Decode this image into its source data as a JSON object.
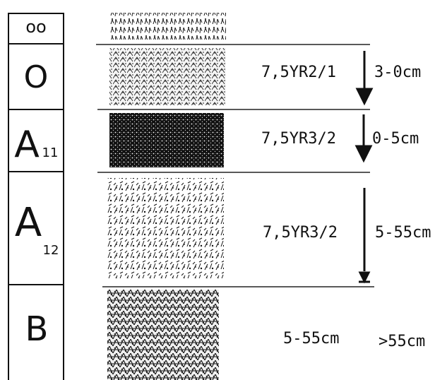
{
  "horizons": [
    {
      "code": "OO",
      "depth": "",
      "color": ""
    },
    {
      "code": "O",
      "sub": "",
      "munsell": "7,5YR2/1",
      "depth": "3-0cm"
    },
    {
      "code": "A",
      "sub": "11",
      "munsell": "7,5YR3/2",
      "depth": "0-5cm"
    },
    {
      "code": "A",
      "sub": "12",
      "munsell": "7,5YR3/2",
      "depth": "5-55cm"
    },
    {
      "code": "B",
      "sub": "",
      "munsell": "5-55cm",
      "depth": ">55cm"
    }
  ],
  "symbols": {
    "top": "oo",
    "o": "O",
    "a11_main": "A",
    "a11_sub": "11",
    "a12_main": "A",
    "a12_sub": "12",
    "b": "B"
  },
  "labels": {
    "o_color": "7,5YR2/1",
    "o_depth": "3-0cm",
    "a11_color": "7,5YR3/2",
    "a11_depth": "0-5cm",
    "a12_color": "7,5YR3/2",
    "a12_depth": "5-55cm",
    "b_left": "5-55cm",
    "b_right": ">55cm"
  },
  "colors": {
    "ink": "#111111",
    "line": "#222222"
  }
}
